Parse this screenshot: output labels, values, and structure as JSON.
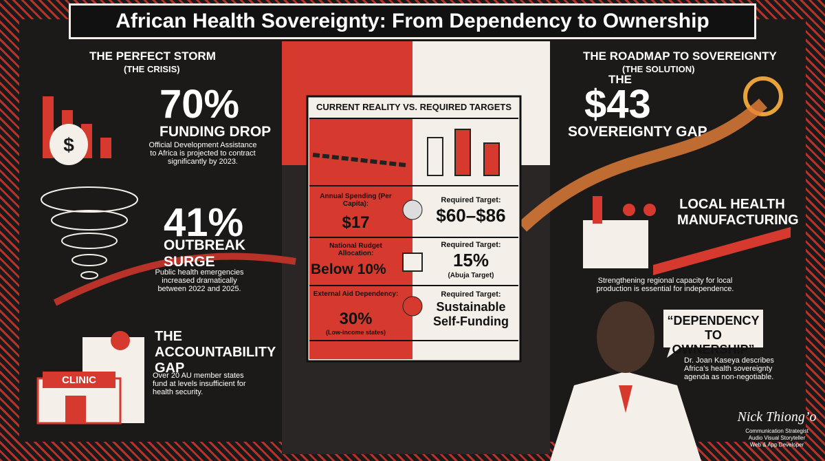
{
  "header": {
    "title": "African Health Sovereignty: From Dependency to Ownership"
  },
  "crisis": {
    "heading": "THE PERFECT STORM",
    "subheading": "(THE CRISIS)",
    "stats": [
      {
        "value": "70%",
        "label": "FUNDING DROP",
        "text": "Official Development Assistance to Africa is projected to contract significantly by 2023."
      },
      {
        "value": "41%",
        "label": "OUTBREAK SURGE",
        "text": "Public health emergencies increased dramatically between 2022 and 2025."
      },
      {
        "label": "THE ACCOUNTABILITY GAP",
        "text": "Over 20 AU member states fund at levels insufficient for health security."
      }
    ],
    "clinic_sign": "CLINIC"
  },
  "comparison": {
    "title": "CURRENT REALITY VS. REQUIRED TARGETS",
    "rows": [
      {
        "current_label": "Annual Spending (Per Capita):",
        "current_value": "$17",
        "target_label": "Required Target:",
        "target_value": "$60–$86"
      },
      {
        "current_label": "National Rudget Allocation:",
        "current_value": "Below 10%",
        "target_label": "Required Target:",
        "target_value": "15%",
        "target_note": "(Abuja Target)"
      },
      {
        "current_label": "External Aid Dependency:",
        "current_value": "30%",
        "current_note": "(Low-income states)",
        "target_label": "Required Target:",
        "target_value": "Sustainable Self-Funding"
      }
    ]
  },
  "solution": {
    "heading": "THE ROADMAP TO SOVEREIGNTY",
    "subheading": "(THE SOLUTION)",
    "gap_prefix": "THE",
    "gap_value": "$43",
    "gap_label": "SOVEREIGNTY GAP",
    "manufacturing_heading": "LOCAL HEALTH MANUFACTURING",
    "manufacturing_text": "Strengthening regional capacity for local production is essential for independence.",
    "quote": "“DEPENDENCY TO OWNERSHIP”",
    "quote_text": "Dr. Joan Kaseya describes Africa’s health sovereignty agenda as non-negotiable."
  },
  "signature": {
    "name": "Nick Thiong’o",
    "roles": [
      "Communication Strategist",
      "Audio Visual Storyteller",
      "Web & App Developer"
    ]
  }
}
